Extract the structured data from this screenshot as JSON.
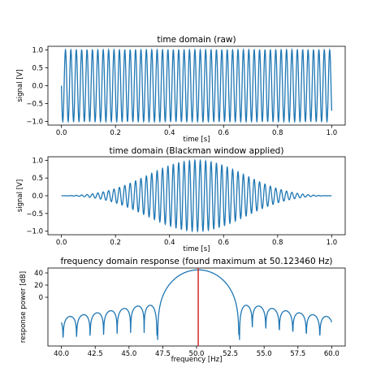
{
  "chart_data": [
    {
      "type": "line",
      "title": "time domain (raw)",
      "xlabel": "time [s]",
      "ylabel": "signal [V]",
      "xlim": [
        -0.05,
        1.05
      ],
      "ylim": [
        -1.1,
        1.1
      ],
      "xticks": [
        0.0,
        0.2,
        0.4,
        0.6,
        0.8,
        1.0
      ],
      "yticks": [
        -1.0,
        -0.5,
        0.0,
        0.5,
        1.0
      ],
      "xtick_labels": [
        "0.0",
        "0.2",
        "0.4",
        "0.6",
        "0.8",
        "1.0"
      ],
      "ytick_labels": [
        "−1.0",
        "−0.5",
        "0.0",
        "0.5",
        "1.0"
      ],
      "grid": false,
      "series": [
        {
          "function": "sine",
          "frequency_hz": 50.12346,
          "amplitude": 1.0,
          "x_range": [
            0.0,
            1.0
          ],
          "window": "none",
          "color": "#1f77b4"
        }
      ]
    },
    {
      "type": "line",
      "title": "time domain (Blackman window applied)",
      "xlabel": "time [s]",
      "ylabel": "signal [V]",
      "xlim": [
        -0.05,
        1.05
      ],
      "ylim": [
        -1.1,
        1.1
      ],
      "xticks": [
        0.0,
        0.2,
        0.4,
        0.6,
        0.8,
        1.0
      ],
      "yticks": [
        -1.0,
        -0.5,
        0.0,
        0.5,
        1.0
      ],
      "xtick_labels": [
        "0.0",
        "0.2",
        "0.4",
        "0.6",
        "0.8",
        "1.0"
      ],
      "ytick_labels": [
        "−1.0",
        "−0.5",
        "0.0",
        "0.5",
        "1.0"
      ],
      "grid": false,
      "series": [
        {
          "function": "sine",
          "frequency_hz": 50.12346,
          "amplitude": 1.0,
          "x_range": [
            0.0,
            1.0
          ],
          "window": "blackman",
          "color": "#1f77b4"
        }
      ]
    },
    {
      "type": "line",
      "title": "frequency domain response (found maximum at 50.123460 Hz)",
      "xlabel": "frequency [Hz]",
      "ylabel": "response power [dB]",
      "xlim": [
        39.0,
        61.0
      ],
      "ylim": [
        -80,
        48
      ],
      "xticks": [
        40.0,
        42.5,
        45.0,
        47.5,
        50.0,
        52.5,
        55.0,
        57.5,
        60.0
      ],
      "xtick_labels": [
        "40.0",
        "42.5",
        "45.0",
        "47.5",
        "50.0",
        "52.5",
        "55.0",
        "57.5",
        "60.0"
      ],
      "yticks": [
        0,
        20,
        40
      ],
      "ytick_labels": [
        "0",
        "20",
        "40"
      ],
      "grid": false,
      "series": [
        {
          "function": "blackman_spectrum_db",
          "center_hz": 50.12346,
          "peak_db": 45,
          "main_lobe_zeros_hz": [
            47.12346,
            53.12346
          ],
          "x_range": [
            40.0,
            60.0
          ],
          "color": "#1f77b4"
        }
      ],
      "marker_line": {
        "x": 50.12346,
        "color": "#d62728"
      }
    }
  ]
}
